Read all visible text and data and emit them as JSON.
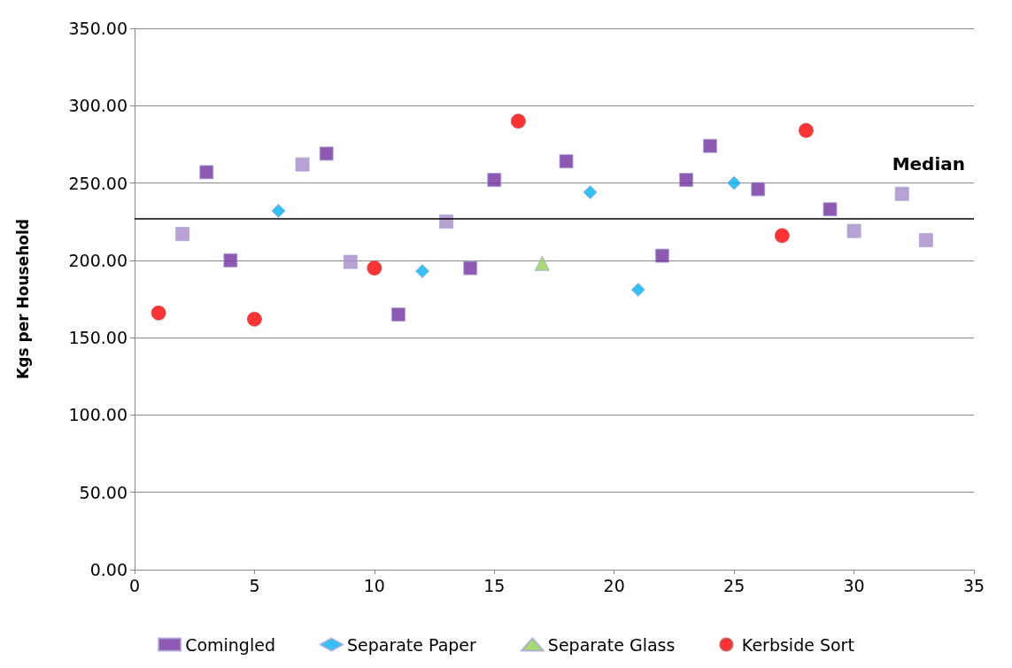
{
  "chart_data": {
    "type": "scatter",
    "ylabel": "Kgs per Household",
    "xlim": [
      0,
      35
    ],
    "xticks": [
      0,
      5,
      10,
      15,
      20,
      25,
      30,
      35
    ],
    "ylim": [
      0,
      350
    ],
    "yticks": [
      {
        "value": 0,
        "label": "0.00"
      },
      {
        "value": 50,
        "label": "50.00"
      },
      {
        "value": 100,
        "label": "100.00"
      },
      {
        "value": 150,
        "label": "150.00"
      },
      {
        "value": 200,
        "label": "200.00"
      },
      {
        "value": 250,
        "label": "250.00"
      },
      {
        "value": 300,
        "label": "300.00"
      },
      {
        "value": 350,
        "label": "350.00"
      }
    ],
    "grid": "y",
    "legend": "bottom",
    "series": [
      {
        "name": "Comingled",
        "color": "#7030a0",
        "marker": "square",
        "x": [
          3,
          4,
          8,
          11,
          14,
          15,
          18,
          22,
          23,
          24,
          26,
          29
        ],
        "values": [
          257,
          200,
          269,
          165,
          195,
          252,
          264,
          203,
          252,
          274,
          246,
          233
        ]
      },
      {
        "color": "#a58bc8",
        "marker": "square",
        "x": [
          2,
          7,
          9,
          13,
          30,
          32,
          33
        ],
        "values": [
          217,
          262,
          199,
          225,
          219,
          243,
          213
        ]
      },
      {
        "name": "Separate Paper",
        "color": "#00b0f0",
        "marker": "diamond",
        "x": [
          6,
          12,
          19,
          21,
          25
        ],
        "values": [
          232,
          193,
          244,
          181,
          250
        ]
      },
      {
        "name": "Separate Glass",
        "color": "#92d050",
        "marker": "triangle",
        "x": [
          17
        ],
        "values": [
          198
        ]
      },
      {
        "name": "Kerbside Sort",
        "color": "#ff0000",
        "marker": "circle",
        "x": [
          1,
          5,
          10,
          16,
          27,
          28
        ],
        "values": [
          166,
          162,
          195,
          290,
          216,
          284
        ]
      }
    ],
    "ref_lines": [
      {
        "axis": "y",
        "value": 227,
        "label": "Median",
        "color": "#000000"
      }
    ]
  }
}
